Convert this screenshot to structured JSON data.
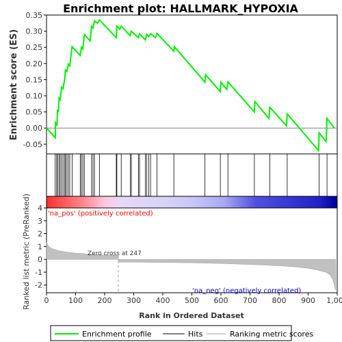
{
  "chart_data": {
    "type": "line",
    "title": "Enrichment plot: HALLMARK_HYPOXIA",
    "top_panel": {
      "ylabel": "Enrichment score (ES)",
      "ylim": [
        -0.08,
        0.35
      ],
      "yticks": [
        "-0.05",
        "0.00",
        "0.05",
        "0.10",
        "0.15",
        "0.20",
        "0.25",
        "0.30",
        "0.35"
      ],
      "ytick_values": [
        -0.05,
        0.0,
        0.05,
        0.1,
        0.15,
        0.2,
        0.25,
        0.3,
        0.35
      ],
      "series": [
        {
          "name": "Enrichment profile",
          "color": "#00ee00",
          "points": [
            [
              0,
              0.0
            ],
            [
              30,
              -0.03
            ],
            [
              31,
              0.017
            ],
            [
              36,
              0.01
            ],
            [
              38,
              0.057
            ],
            [
              41,
              0.05
            ],
            [
              43,
              0.093
            ],
            [
              47,
              0.088
            ],
            [
              52,
              0.127
            ],
            [
              57,
              0.122
            ],
            [
              63,
              0.155
            ],
            [
              65,
              0.18
            ],
            [
              70,
              0.175
            ],
            [
              75,
              0.198
            ],
            [
              80,
              0.193
            ],
            [
              88,
              0.252
            ],
            [
              116,
              0.225
            ],
            [
              120,
              0.25
            ],
            [
              125,
              0.245
            ],
            [
              130,
              0.29
            ],
            [
              150,
              0.27
            ],
            [
              155,
              0.315
            ],
            [
              160,
              0.31
            ],
            [
              165,
              0.332
            ],
            [
              175,
              0.325
            ],
            [
              182,
              0.335
            ],
            [
              240,
              0.28
            ],
            [
              242,
              0.316
            ],
            [
              252,
              0.306
            ],
            [
              257,
              0.316
            ],
            [
              288,
              0.286
            ],
            [
              292,
              0.3
            ],
            [
              316,
              0.28
            ],
            [
              320,
              0.292
            ],
            [
              340,
              0.273
            ],
            [
              345,
              0.29
            ],
            [
              352,
              0.283
            ],
            [
              358,
              0.292
            ],
            [
              375,
              0.28
            ],
            [
              380,
              0.293
            ],
            [
              438,
              0.238
            ],
            [
              440,
              0.252
            ],
            [
              545,
              0.142
            ],
            [
              547,
              0.165
            ],
            [
              598,
              0.113
            ],
            [
              600,
              0.142
            ],
            [
              620,
              0.12
            ],
            [
              624,
              0.143
            ],
            [
              715,
              0.05
            ],
            [
              717,
              0.082
            ],
            [
              765,
              0.03
            ],
            [
              768,
              0.064
            ],
            [
              826,
              0.007
            ],
            [
              828,
              0.044
            ],
            [
              936,
              -0.07
            ],
            [
              938,
              -0.015
            ],
            [
              962,
              -0.042
            ],
            [
              965,
              0.03
            ],
            [
              990,
              0.0
            ]
          ]
        }
      ]
    },
    "hits": {
      "name": "Hits",
      "positions": [
        30,
        35,
        38,
        43,
        47,
        52,
        57,
        63,
        65,
        70,
        75,
        80,
        88,
        116,
        120,
        125,
        130,
        155,
        160,
        165,
        182,
        240,
        242,
        257,
        288,
        292,
        316,
        320,
        340,
        345,
        352,
        358,
        380,
        438,
        545,
        598,
        624,
        715,
        768,
        828,
        938,
        965
      ]
    },
    "heatmap_bar": {
      "colors_left_to_right": [
        "#ff3030",
        "#ff6060",
        "#ff9aa8",
        "#ffc8e0",
        "#e8d8f6",
        "#d8d4f8",
        "#c8c8f8",
        "#a8a8f4",
        "#5050e0",
        "#2020c8",
        "#0000a0"
      ],
      "stops": [
        0,
        70,
        150,
        200,
        250,
        400,
        500,
        610,
        720,
        940,
        995
      ]
    },
    "bottom_panel": {
      "type": "area",
      "ylabel": "Ranked list metric (PreRanked)",
      "xlabel": "Rank in Ordered Dataset",
      "ylim": [
        -2.6,
        4.0
      ],
      "yticks": [
        "-2",
        "-1",
        "0",
        "1",
        "2",
        "3",
        "4"
      ],
      "ytick_values": [
        -2,
        -1,
        0,
        1,
        2,
        3,
        4
      ],
      "xticks": [
        "0",
        "100",
        "200",
        "300",
        "400",
        "500",
        "600",
        "700",
        "800",
        "900",
        "1,000"
      ],
      "xtick_values": [
        0,
        100,
        200,
        300,
        400,
        500,
        600,
        700,
        800,
        900,
        1000
      ],
      "xlim": [
        0,
        1000
      ],
      "profile": [
        [
          0,
          1.35
        ],
        [
          5,
          1.1
        ],
        [
          10,
          0.95
        ],
        [
          20,
          0.82
        ],
        [
          40,
          0.68
        ],
        [
          70,
          0.56
        ],
        [
          100,
          0.48
        ],
        [
          150,
          0.4
        ],
        [
          200,
          0.34
        ],
        [
          246,
          0.3
        ],
        [
          247,
          -0.22
        ],
        [
          300,
          -0.22
        ],
        [
          400,
          -0.24
        ],
        [
          500,
          -0.27
        ],
        [
          600,
          -0.32
        ],
        [
          700,
          -0.4
        ],
        [
          800,
          -0.5
        ],
        [
          850,
          -0.58
        ],
        [
          900,
          -0.7
        ],
        [
          930,
          -0.82
        ],
        [
          960,
          -1.0
        ],
        [
          975,
          -1.2
        ],
        [
          985,
          -1.6
        ],
        [
          990,
          -2.0
        ],
        [
          994,
          -2.4
        ],
        [
          995,
          -2.4
        ]
      ],
      "fill_color": "#c0c0c0",
      "zero_cross_label": "Zero cross at 247",
      "zero_cross_rank": 247,
      "pos_label": "'na_pos' (positively correlated)",
      "neg_label": "'na_neg' (negatively correlated)",
      "pos_label_color": "#ff0000",
      "neg_label_color": "#0000cc"
    },
    "legend": {
      "placement": "bottom",
      "entries": [
        {
          "label": "Enrichment profile",
          "color": "#00ee00"
        },
        {
          "label": "Hits",
          "color": "#000000"
        },
        {
          "label": "Ranking metric scores",
          "color": "#c0c0c0"
        }
      ]
    }
  }
}
